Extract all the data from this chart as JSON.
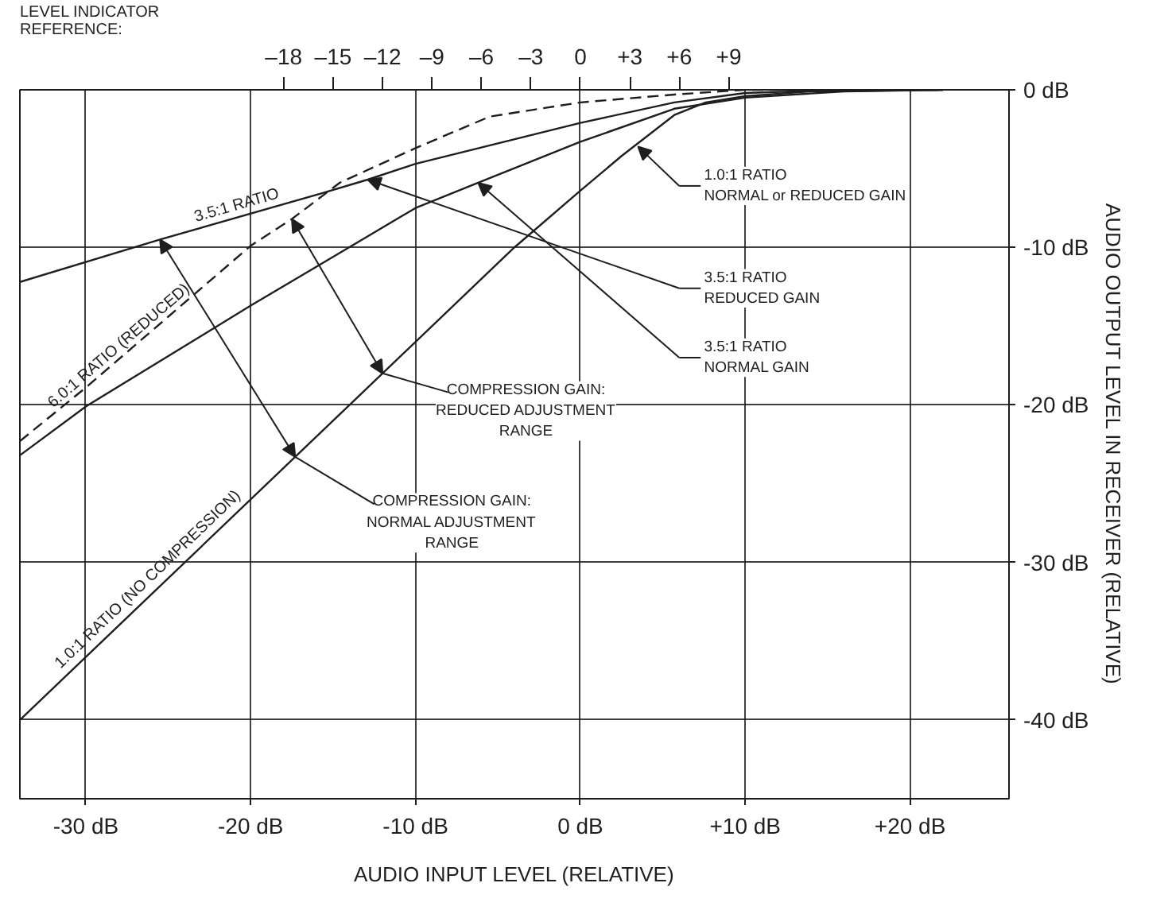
{
  "chart_data": {
    "type": "line",
    "xlabel": "AUDIO INPUT LEVEL (RELATIVE)",
    "ylabel": "AUDIO OUTPUT LEVEL IN RECEIVER (RELATIVE)",
    "x2label": "LEVEL INDICATOR\nREFERENCE:",
    "xlim": [
      -34,
      26
    ],
    "ylim": [
      -45,
      0
    ],
    "x2lim": [
      -34,
      26
    ],
    "xticks": [
      {
        "value": -30,
        "label": "-30 dB"
      },
      {
        "value": -20,
        "label": "-20 dB"
      },
      {
        "value": -10,
        "label": "-10 dB"
      },
      {
        "value": 0,
        "label": "0 dB"
      },
      {
        "value": 10,
        "label": "+10 dB"
      },
      {
        "value": 20,
        "label": "+20 dB"
      }
    ],
    "yticks": [
      {
        "value": 0,
        "label": "0 dB"
      },
      {
        "value": -10,
        "label": "-10 dB"
      },
      {
        "value": -20,
        "label": "-20 dB"
      },
      {
        "value": -30,
        "label": "-30 dB"
      },
      {
        "value": -40,
        "label": "-40 dB"
      }
    ],
    "x2ticks": [
      {
        "value": -18,
        "label": "–18"
      },
      {
        "value": -15,
        "label": "–15"
      },
      {
        "value": -12,
        "label": "–12"
      },
      {
        "value": -9,
        "label": "–9"
      },
      {
        "value": -6,
        "label": "–6"
      },
      {
        "value": -3,
        "label": "–3"
      },
      0,
      {
        "value": 3,
        "label": "+3"
      },
      {
        "value": 6,
        "label": "+6"
      },
      {
        "value": 9,
        "label": "+9"
      }
    ],
    "grid": true,
    "line_style": "solid",
    "series": [
      {
        "name": "3.5:1 RATIO",
        "color": "#1e1e1e",
        "x": [
          -34,
          -25.5,
          -15.8,
          -12.9,
          -10,
          0,
          5.7,
          10,
          16,
          22
        ],
        "values": [
          -12.2,
          -9.5,
          -6.6,
          -5.7,
          -4.7,
          -2.1,
          -0.8,
          -0.2,
          0,
          0
        ]
      },
      {
        "name": "6.0:1 RATIO (REDUCED)",
        "color": "#1e1e1e",
        "line_style": "dashed",
        "x": [
          -34,
          -30,
          -20,
          -17.5,
          -14.6,
          -10,
          -5.5,
          0,
          5.7,
          10,
          16,
          22
        ],
        "values": [
          -22.3,
          -18.9,
          -9.9,
          -8.2,
          -5.9,
          -3.7,
          -1.7,
          -0.8,
          -0.3,
          0,
          0,
          0
        ]
      },
      {
        "name": "1.0:1 RATIO (NO COMPRESSION)",
        "color": "#1e1e1e",
        "x": [
          -34,
          -4,
          0,
          2.5,
          5.7,
          7.6,
          10,
          14,
          22
        ],
        "values": [
          -40,
          -10,
          -6.4,
          -4.2,
          -1.6,
          -0.8,
          -0.4,
          -0.1,
          0
        ]
      },
      {
        "color": "#1e1e1e",
        "x": [
          -34,
          -30,
          -20,
          -15.8,
          -10,
          -6.2,
          0,
          5.7,
          10,
          16,
          22
        ],
        "values": [
          -23.2,
          -20.1,
          -13.7,
          -11.1,
          -7.5,
          -5.9,
          -3.3,
          -1.2,
          -0.5,
          -0.1,
          0
        ]
      }
    ],
    "annotations": [
      "1.0:1 RATIO\nNORMAL or REDUCED GAIN",
      "3.5:1 RATIO\nREDUCED GAIN",
      "3.5:1 RATIO\nNORMAL GAIN",
      "COMPRESSION GAIN:\nREDUCED ADJUSTMENT\nRANGE",
      {
        "text": "COMPRESSION GAIN:\nNORMAL ADJUSTMENT\nRANGE",
        "x": -17.3,
        "y": -23.3
      }
    ]
  }
}
